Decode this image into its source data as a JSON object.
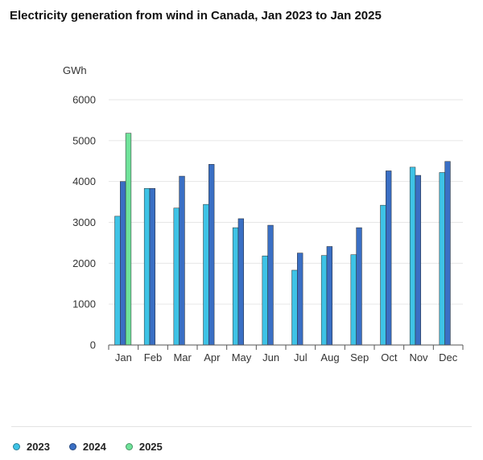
{
  "chart_data": {
    "type": "bar",
    "title": "Electricity generation from wind in Canada, Jan 2023 to Jan 2025",
    "ylabel": "GWh",
    "xlabel": "",
    "ylim": [
      0,
      6000
    ],
    "yticks": [
      0,
      1000,
      2000,
      3000,
      4000,
      5000,
      6000
    ],
    "categories": [
      "Jan",
      "Feb",
      "Mar",
      "Apr",
      "May",
      "Jun",
      "Jul",
      "Aug",
      "Sep",
      "Oct",
      "Nov",
      "Dec"
    ],
    "series": [
      {
        "name": "2023",
        "color": "#3ec3e6",
        "values": [
          3150,
          3830,
          3350,
          3440,
          2870,
          2180,
          1830,
          2190,
          2210,
          3420,
          4350,
          4220
        ]
      },
      {
        "name": "2024",
        "color": "#3a6fc4",
        "values": [
          4000,
          3830,
          4130,
          4420,
          3090,
          2930,
          2250,
          2410,
          2870,
          4260,
          4150,
          4490
        ]
      },
      {
        "name": "2025",
        "color": "#6fe39a",
        "values": [
          5180,
          null,
          null,
          null,
          null,
          null,
          null,
          null,
          null,
          null,
          null,
          null
        ]
      }
    ],
    "grid": true,
    "legend_position": "bottom-left"
  }
}
